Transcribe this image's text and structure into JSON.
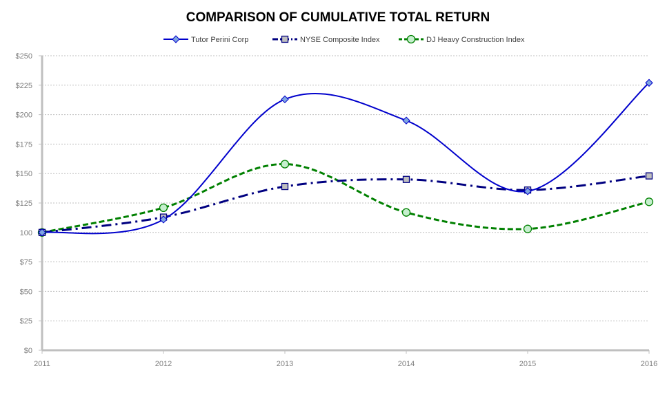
{
  "chart_data": {
    "type": "line",
    "title": "COMPARISON OF CUMULATIVE TOTAL RETURN",
    "xlabel": "",
    "ylabel": "",
    "categories": [
      "2011",
      "2012",
      "2013",
      "2014",
      "2015",
      "2016"
    ],
    "ylim": [
      0,
      250
    ],
    "y_ticks": [
      0,
      25,
      50,
      75,
      100,
      125,
      150,
      175,
      200,
      225,
      250
    ],
    "y_tick_labels": [
      "$0",
      "$25",
      "$50",
      "$75",
      "100",
      "$125",
      "$150",
      "$175",
      "$200",
      "$225",
      "$250"
    ],
    "grid": true,
    "legend_position": "top-center",
    "series": [
      {
        "name": "Tutor Perini Corp",
        "values": [
          100,
          111,
          213,
          195,
          135,
          227
        ],
        "color": "#0000CC",
        "marker": "diamond",
        "marker_fill": "#7FA6E0",
        "dash": "solid"
      },
      {
        "name": "NYSE Composite Index",
        "values": [
          100,
          113,
          139,
          145,
          136,
          148
        ],
        "color": "#000080",
        "marker": "square",
        "marker_fill": "#BFBFBF",
        "dash": "dashdot"
      },
      {
        "name": "DJ Heavy Construction Index",
        "values": [
          100,
          121,
          158,
          117,
          103,
          126
        ],
        "color": "#008000",
        "marker": "circle",
        "marker_fill": "#C6EFCE",
        "dash": "dash"
      }
    ]
  }
}
